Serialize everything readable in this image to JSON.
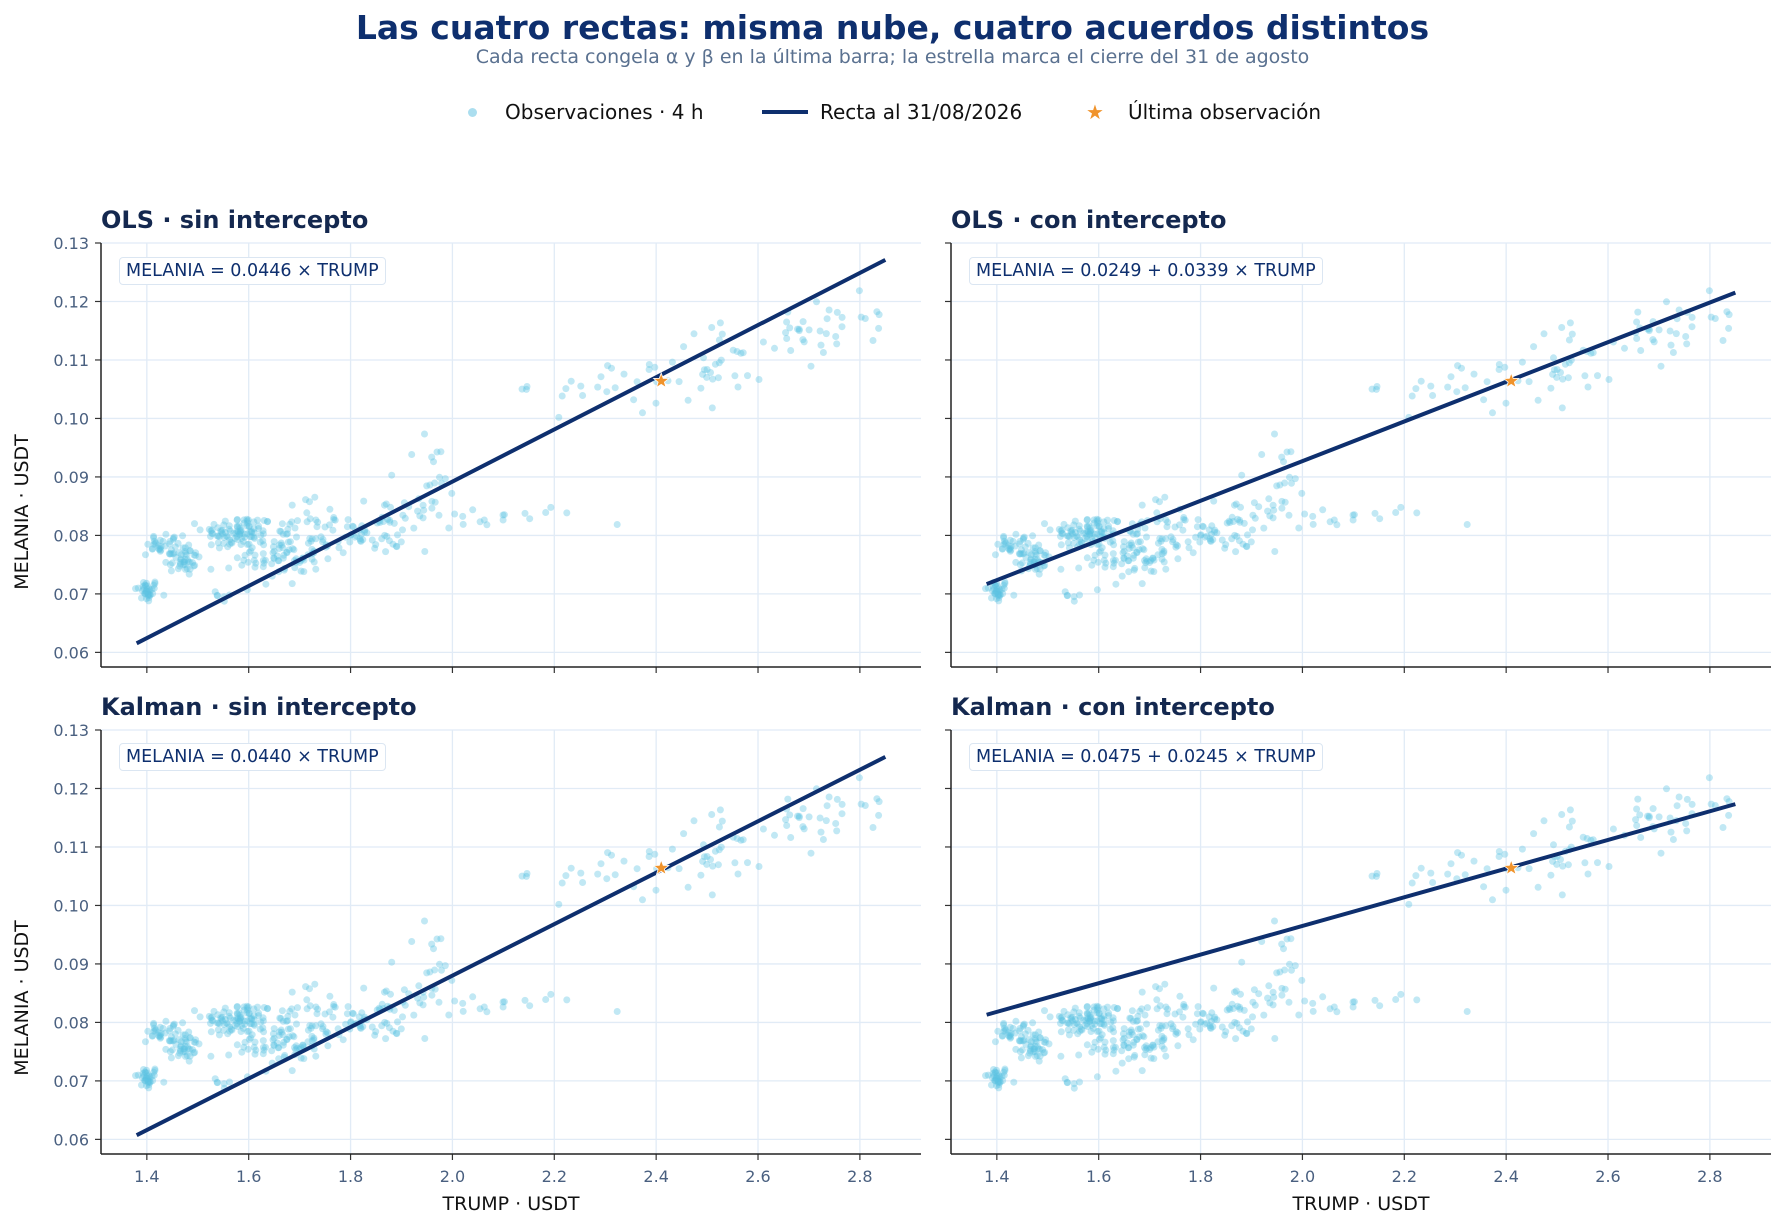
{
  "title": "Las cuatro rectas: misma nube, cuatro acuerdos distintos",
  "subtitle": "Cada recta congela α y β en la última barra; la estrella marca el cierre del 31 de agosto",
  "legend": {
    "scatter_label": "Observaciones · 4 h",
    "line_label": "Recta al 31/08/2026",
    "star_label": "Última observación"
  },
  "colors": {
    "scatter": "#5bc2e2",
    "line": "#0e2f6e",
    "star": "#f0932b",
    "grid": "#e1ebf6",
    "tick_text": "#4a6080",
    "title": "#0e2f6e"
  },
  "chart_data": [
    {
      "type": "scatter",
      "title": "OLS · sin intercepto",
      "equation": "MELANIA = 0.0446 × TRUMP",
      "alpha": 0,
      "beta": 0.0446,
      "xlabel": "",
      "ylabel": "MELANIA · USDT",
      "xlim": [
        1.31,
        2.92
      ],
      "ylim": [
        0.0575,
        0.13
      ],
      "xticks": [
        "1.4",
        "1.6",
        "1.8",
        "2.0",
        "2.2",
        "2.4",
        "2.6",
        "2.8"
      ],
      "yticks": [
        "0.06",
        "0.07",
        "0.08",
        "0.09",
        "0.10",
        "0.11",
        "0.12",
        "0.13"
      ],
      "line_x": [
        1.38,
        2.85
      ],
      "last_point": {
        "x": 2.41,
        "y": 0.1064
      },
      "grid": true
    },
    {
      "type": "scatter",
      "title": "OLS · con intercepto",
      "equation": "MELANIA = 0.0249 + 0.0339 × TRUMP",
      "alpha": 0.0249,
      "beta": 0.0339,
      "xlabel": "",
      "ylabel": "",
      "xlim": [
        1.31,
        2.92
      ],
      "ylim": [
        0.0575,
        0.13
      ],
      "xticks": [
        "1.4",
        "1.6",
        "1.8",
        "2.0",
        "2.2",
        "2.4",
        "2.6",
        "2.8"
      ],
      "yticks": [
        "0.06",
        "0.07",
        "0.08",
        "0.09",
        "0.10",
        "0.11",
        "0.12",
        "0.13"
      ],
      "line_x": [
        1.38,
        2.85
      ],
      "last_point": {
        "x": 2.41,
        "y": 0.1064
      },
      "grid": true
    },
    {
      "type": "scatter",
      "title": "Kalman · sin intercepto",
      "equation": "MELANIA = 0.0440 × TRUMP",
      "alpha": 0,
      "beta": 0.044,
      "xlabel": "TRUMP · USDT",
      "ylabel": "MELANIA · USDT",
      "xlim": [
        1.31,
        2.92
      ],
      "ylim": [
        0.0575,
        0.13
      ],
      "xticks": [
        "1.4",
        "1.6",
        "1.8",
        "2.0",
        "2.2",
        "2.4",
        "2.6",
        "2.8"
      ],
      "yticks": [
        "0.06",
        "0.07",
        "0.08",
        "0.09",
        "0.10",
        "0.11",
        "0.12",
        "0.13"
      ],
      "line_x": [
        1.38,
        2.85
      ],
      "last_point": {
        "x": 2.41,
        "y": 0.1064
      },
      "grid": true
    },
    {
      "type": "scatter",
      "title": "Kalman · con intercepto",
      "equation": "MELANIA = 0.0475 + 0.0245 × TRUMP",
      "alpha": 0.0475,
      "beta": 0.0245,
      "xlabel": "TRUMP · USDT",
      "ylabel": "",
      "xlim": [
        1.31,
        2.92
      ],
      "ylim": [
        0.0575,
        0.13
      ],
      "xticks": [
        "1.4",
        "1.6",
        "1.8",
        "2.0",
        "2.2",
        "2.4",
        "2.6",
        "2.8"
      ],
      "yticks": [
        "0.06",
        "0.07",
        "0.08",
        "0.09",
        "0.10",
        "0.11",
        "0.12",
        "0.13"
      ],
      "line_x": [
        1.38,
        2.85
      ],
      "last_point": {
        "x": 2.41,
        "y": 0.1064
      },
      "grid": true
    }
  ],
  "scatter_clusters": [
    {
      "x": 1.4,
      "y": 0.0705,
      "sx": 0.012,
      "sy": 0.001,
      "n": 35
    },
    {
      "x": 1.44,
      "y": 0.0785,
      "sx": 0.02,
      "sy": 0.001,
      "n": 30
    },
    {
      "x": 1.47,
      "y": 0.076,
      "sx": 0.018,
      "sy": 0.0015,
      "n": 45
    },
    {
      "x": 1.58,
      "y": 0.0805,
      "sx": 0.035,
      "sy": 0.0015,
      "n": 90
    },
    {
      "x": 1.66,
      "y": 0.0765,
      "sx": 0.04,
      "sy": 0.0025,
      "n": 80
    },
    {
      "x": 1.56,
      "y": 0.07,
      "sx": 0.012,
      "sy": 0.0008,
      "n": 6
    },
    {
      "x": 1.72,
      "y": 0.0815,
      "sx": 0.04,
      "sy": 0.0025,
      "n": 30
    },
    {
      "x": 1.83,
      "y": 0.08,
      "sx": 0.04,
      "sy": 0.0015,
      "n": 40
    },
    {
      "x": 1.9,
      "y": 0.083,
      "sx": 0.05,
      "sy": 0.002,
      "n": 30
    },
    {
      "x": 1.95,
      "y": 0.091,
      "sx": 0.04,
      "sy": 0.0025,
      "n": 14
    },
    {
      "x": 2.1,
      "y": 0.083,
      "sx": 0.08,
      "sy": 0.001,
      "n": 16
    },
    {
      "x": 2.25,
      "y": 0.106,
      "sx": 0.05,
      "sy": 0.0025,
      "n": 14
    },
    {
      "x": 2.42,
      "y": 0.106,
      "sx": 0.05,
      "sy": 0.002,
      "n": 20
    },
    {
      "x": 2.55,
      "y": 0.11,
      "sx": 0.06,
      "sy": 0.003,
      "n": 22
    },
    {
      "x": 2.72,
      "y": 0.114,
      "sx": 0.06,
      "sy": 0.003,
      "n": 28
    },
    {
      "x": 2.8,
      "y": 0.118,
      "sx": 0.04,
      "sy": 0.003,
      "n": 6
    }
  ]
}
